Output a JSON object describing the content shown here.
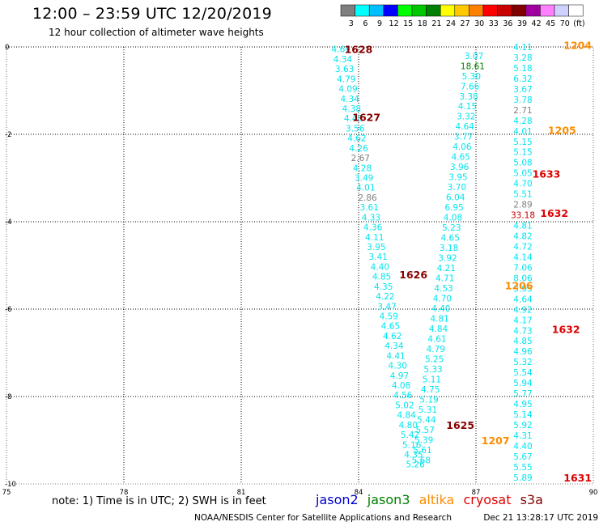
{
  "title": "12:00 – 23:59 UTC 12/20/2019",
  "subtitle": "12 hour collection of altimeter wave heights",
  "colorbar": {
    "colors": [
      "#7f7f7f",
      "#00ffff",
      "#00bfff",
      "#0000ff",
      "#00ff00",
      "#00c800",
      "#008000",
      "#ffff00",
      "#ffc800",
      "#ff8000",
      "#ff0000",
      "#c80000",
      "#800000",
      "#a000a0",
      "#ff80ff",
      "#d0d0ff",
      "#ffffff"
    ],
    "labels": [
      "3",
      "6",
      "9",
      "12",
      "15",
      "18",
      "21",
      "24",
      "27",
      "30",
      "33",
      "36",
      "39",
      "42",
      "45",
      "70",
      "(ft)"
    ]
  },
  "axes": {
    "x_ticks": [
      "75",
      "78",
      "81",
      "84",
      "87",
      "90"
    ],
    "x_values": [
      75,
      78,
      81,
      84,
      87,
      90
    ],
    "y_ticks": [
      "0",
      "-2",
      "-4",
      "-6",
      "-8",
      "-10"
    ],
    "y_values": [
      0,
      -2,
      -4,
      -6,
      -8,
      -10
    ],
    "xlim": [
      75,
      90
    ],
    "ylim": [
      -10,
      0
    ]
  },
  "note": "note: 1) Time is in UTC; 2) SWH is in feet",
  "satellites": [
    {
      "name": "jason2",
      "color": "#0000cc"
    },
    {
      "name": "jason3",
      "color": "#008000"
    },
    {
      "name": "altika",
      "color": "#ff8c00"
    },
    {
      "name": "cryosat",
      "color": "#dd0000"
    },
    {
      "name": "s3a",
      "color": "#880000"
    }
  ],
  "footer_left": "NOAA/NESDIS Center for Satellite Applications and Research",
  "footer_right": "Dec 21 13:28:17 UTC 2019",
  "track_labels": [
    {
      "text": "1628",
      "lon": 84.0,
      "lat": -0.05,
      "color": "#880000"
    },
    {
      "text": "1627",
      "lon": 84.2,
      "lat": -1.6,
      "color": "#880000"
    },
    {
      "text": "1626",
      "lon": 85.4,
      "lat": -5.2,
      "color": "#880000"
    },
    {
      "text": "1625",
      "lon": 86.6,
      "lat": -8.65,
      "color": "#880000"
    },
    {
      "text": "1204",
      "lon": 89.6,
      "lat": 0.05,
      "color": "#ff8c00"
    },
    {
      "text": "1205",
      "lon": 89.2,
      "lat": -1.9,
      "color": "#ff8c00"
    },
    {
      "text": "1206",
      "lon": 88.1,
      "lat": -5.45,
      "color": "#ff8c00"
    },
    {
      "text": "1207",
      "lon": 87.5,
      "lat": -9.0,
      "color": "#ff8c00"
    },
    {
      "text": "1633",
      "lon": 88.8,
      "lat": -2.9,
      "color": "#dd0000"
    },
    {
      "text": "1632",
      "lon": 89.0,
      "lat": -3.8,
      "color": "#dd0000"
    },
    {
      "text": "1632",
      "lon": 89.3,
      "lat": -6.45,
      "color": "#dd0000"
    },
    {
      "text": "1631",
      "lon": 89.6,
      "lat": -9.85,
      "color": "#dd0000"
    }
  ],
  "tracks": [
    {
      "id": "cyan-a",
      "color": "#00e5ee",
      "x0": 83.55,
      "y0": -0.05,
      "x1": 85.45,
      "y1": -9.55,
      "values": [
        "4.69",
        "4.34",
        "3.63",
        "4.79",
        "4.09",
        "4.34",
        "4.38",
        "4.48",
        "3.56",
        "4.62",
        "4.26",
        "2.67",
        "4.28",
        "3.49",
        "4.01",
        "2.86",
        "3.61",
        "4.33",
        "4.36",
        "4.11",
        "3.95",
        "3.41",
        "4.40",
        "4.85",
        "4.35",
        "4.22",
        "3.47",
        "4.59",
        "4.65",
        "4.62",
        "4.34",
        "4.41",
        "4.30",
        "4.97",
        "4.08",
        "4.56",
        "5.02",
        "4.84",
        "4.80",
        "5.42",
        "5.16",
        "4.35",
        "5.26"
      ]
    },
    {
      "id": "cyan-b",
      "color": "#00e5ee",
      "x0": 86.95,
      "y0": -0.2,
      "x1": 85.6,
      "y1": -9.45,
      "values": [
        "3.07",
        "18.61",
        "5.30",
        "7.66",
        "3.38",
        "4.15",
        "3.32",
        "4.64",
        "3.77",
        "4.06",
        "4.65",
        "3.96",
        "3.95",
        "3.70",
        "6.04",
        "6.95",
        "4.08",
        "5.23",
        "4.65",
        "3.18",
        "3.92",
        "4.21",
        "4.71",
        "4.53",
        "4.70",
        "4.40",
        "4.81",
        "4.84",
        "4.61",
        "4.79",
        "5.25",
        "5.33",
        "5.11",
        "4.75",
        "5.19",
        "5.31",
        "5.44",
        "5.57",
        "5.39",
        "5.61",
        "5.68"
      ]
    },
    {
      "id": "cyan-c",
      "color": "#00e5ee",
      "x0": 88.2,
      "y0": 0.0,
      "x1": 88.2,
      "y1": -9.85,
      "values": [
        "4.11",
        "3.28",
        "5.18",
        "6.32",
        "3.67",
        "3.78",
        "2.71",
        "4.28",
        "4.01",
        "5.15",
        "5.15",
        "5.08",
        "5.05",
        "4.70",
        "5.51",
        "2.89",
        "33.18",
        "4.81",
        "4.82",
        "4.72",
        "4.14",
        "7.06",
        "8.06",
        "3.95",
        "4.64",
        "4.92",
        "4.17",
        "4.73",
        "4.85",
        "4.96",
        "5.32",
        "5.54",
        "5.94",
        "5.77",
        "4.95",
        "5.14",
        "5.92",
        "4.31",
        "4.40",
        "5.67",
        "5.55",
        "5.89"
      ]
    }
  ]
}
